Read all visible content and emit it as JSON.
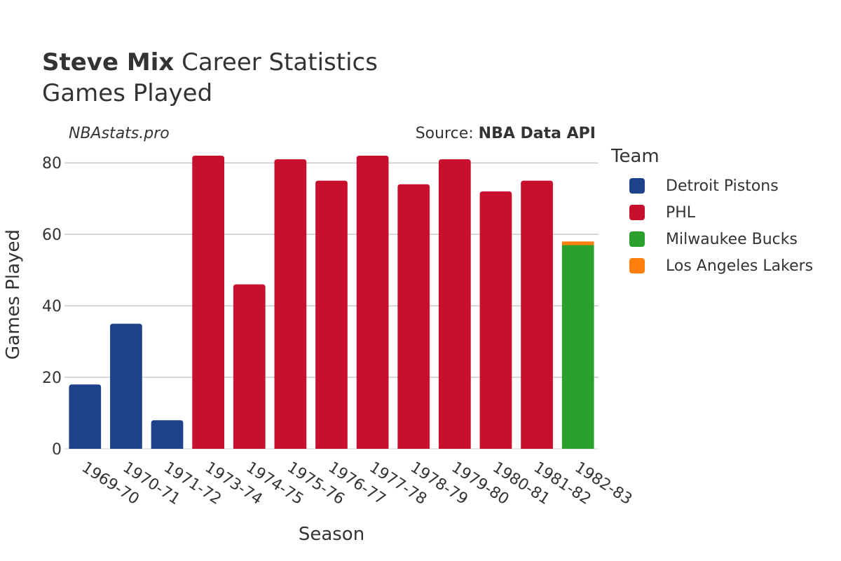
{
  "header": {
    "title_bold": "Steve Mix",
    "title_rest": " Career Statistics",
    "subtitle": "Games Played",
    "brand": "NBAstats.pro",
    "source_prefix": "Source: ",
    "source_name": "NBA Data API"
  },
  "legend": {
    "title": "Team",
    "items": [
      {
        "label": "Detroit Pistons",
        "color": "#1d428a"
      },
      {
        "label": "PHL",
        "color": "#c8102e"
      },
      {
        "label": "Milwaukee Bucks",
        "color": "#2ca02c"
      },
      {
        "label": "Los Angeles Lakers",
        "color": "#ff7f0e"
      }
    ]
  },
  "chart_data": {
    "type": "bar",
    "stacked": true,
    "xlabel": "Season",
    "ylabel": "Games Played",
    "ylim": [
      0,
      82
    ],
    "yticks": [
      0,
      20,
      40,
      60,
      80
    ],
    "grid": true,
    "legend_position": "right",
    "categories": [
      "1969-70",
      "1970-71",
      "1971-72",
      "1973-74",
      "1974-75",
      "1975-76",
      "1976-77",
      "1977-78",
      "1978-79",
      "1979-80",
      "1980-81",
      "1981-82",
      "1982-83"
    ],
    "series": [
      {
        "name": "Detroit Pistons",
        "color": "#1d428a",
        "values": [
          18,
          35,
          8,
          0,
          0,
          0,
          0,
          0,
          0,
          0,
          0,
          0,
          0
        ]
      },
      {
        "name": "PHL",
        "color": "#c8102e",
        "values": [
          0,
          0,
          0,
          82,
          46,
          81,
          75,
          82,
          74,
          81,
          72,
          75,
          0
        ]
      },
      {
        "name": "Milwaukee Bucks",
        "color": "#2ca02c",
        "values": [
          0,
          0,
          0,
          0,
          0,
          0,
          0,
          0,
          0,
          0,
          0,
          0,
          57
        ]
      },
      {
        "name": "Los Angeles Lakers",
        "color": "#ff7f0e",
        "values": [
          0,
          0,
          0,
          0,
          0,
          0,
          0,
          0,
          0,
          0,
          0,
          0,
          1
        ]
      }
    ]
  }
}
